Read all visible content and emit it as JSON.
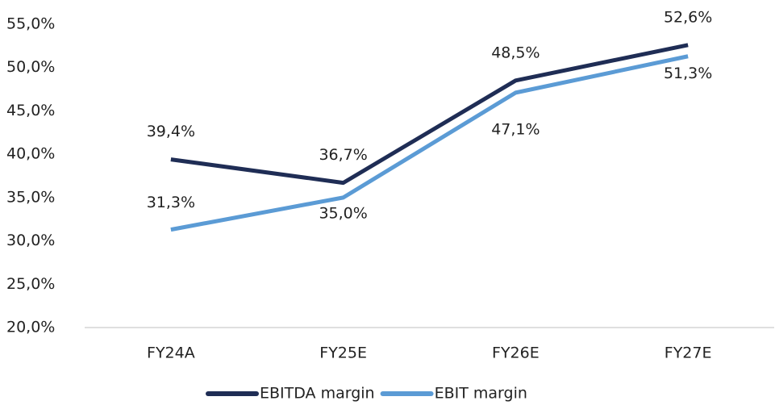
{
  "chart_data": {
    "type": "line",
    "categories": [
      "FY24A",
      "FY25E",
      "FY26E",
      "FY27E"
    ],
    "series": [
      {
        "name": "EBITDA margin",
        "color": "#1f2d55",
        "values": [
          39.4,
          36.7,
          48.5,
          52.6
        ],
        "value_labels": [
          "39,4%",
          "36,7%",
          "48,5%",
          "52,6%"
        ]
      },
      {
        "name": "EBIT margin",
        "color": "#5b9bd5",
        "values": [
          31.3,
          35.0,
          47.1,
          51.3
        ],
        "value_labels": [
          "31,3%",
          "35,0%",
          "47,1%",
          "51,3%"
        ]
      }
    ],
    "ylim": [
      20,
      55
    ],
    "yticks": [
      {
        "value": 20,
        "label": "20,0%"
      },
      {
        "value": 25,
        "label": "25,0%"
      },
      {
        "value": 30,
        "label": "30,0%"
      },
      {
        "value": 35,
        "label": "35,0%"
      },
      {
        "value": 40,
        "label": "40,0%"
      },
      {
        "value": 45,
        "label": "45,0%"
      },
      {
        "value": 50,
        "label": "50,0%"
      },
      {
        "value": 55,
        "label": "55,0%"
      }
    ],
    "legend": "bottom"
  }
}
